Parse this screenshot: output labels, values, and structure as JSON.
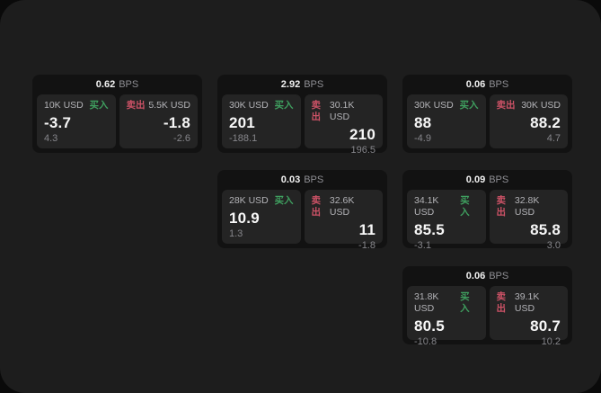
{
  "app": {
    "bps_unit": "BPS",
    "buy_color": "#3f9f5f",
    "sell_color": "#cc5266",
    "window_bg": "#1d1d1d",
    "card_bg": "#121212",
    "panel_bg": "#242424",
    "outside_bg": "#0a0a0a"
  },
  "cards": [
    {
      "grid_position": {
        "row": 1,
        "col": 1
      },
      "bps": "0.62",
      "bps_unit": "BPS",
      "buy": {
        "label": "买入",
        "amount": "10K USD",
        "value": "-3.7",
        "delta": "4.3"
      },
      "sell": {
        "label": "卖出",
        "amount": "5.5K USD",
        "value": "-1.8",
        "delta": "-2.6"
      }
    },
    {
      "grid_position": {
        "row": 1,
        "col": 2
      },
      "bps": "2.92",
      "bps_unit": "BPS",
      "buy": {
        "label": "买入",
        "amount": "30K USD",
        "value": "201",
        "delta": "-188.1"
      },
      "sell": {
        "label": "卖出",
        "amount": "30.1K USD",
        "value": "210",
        "delta": "196.5"
      }
    },
    {
      "grid_position": {
        "row": 1,
        "col": 3
      },
      "bps": "0.06",
      "bps_unit": "BPS",
      "buy": {
        "label": "买入",
        "amount": "30K USD",
        "value": "88",
        "delta": "-4.9"
      },
      "sell": {
        "label": "卖出",
        "amount": "30K USD",
        "value": "88.2",
        "delta": "4.7"
      }
    },
    {
      "grid_position": {
        "row": 2,
        "col": 2
      },
      "bps": "0.03",
      "bps_unit": "BPS",
      "buy": {
        "label": "买入",
        "amount": "28K USD",
        "value": "10.9",
        "delta": "1.3"
      },
      "sell": {
        "label": "卖出",
        "amount": "32.6K USD",
        "value": "11",
        "delta": "-1.8"
      }
    },
    {
      "grid_position": {
        "row": 2,
        "col": 3
      },
      "bps": "0.09",
      "bps_unit": "BPS",
      "buy": {
        "label": "买入",
        "amount": "34.1K USD",
        "value": "85.5",
        "delta": "-3.1"
      },
      "sell": {
        "label": "卖出",
        "amount": "32.8K USD",
        "value": "85.8",
        "delta": "3.0"
      }
    },
    {
      "grid_position": {
        "row": 3,
        "col": 3
      },
      "bps": "0.06",
      "bps_unit": "BPS",
      "buy": {
        "label": "买入",
        "amount": "31.8K USD",
        "value": "80.5",
        "delta": "-10.8"
      },
      "sell": {
        "label": "卖出",
        "amount": "39.1K USD",
        "value": "80.7",
        "delta": "10.2"
      }
    }
  ]
}
